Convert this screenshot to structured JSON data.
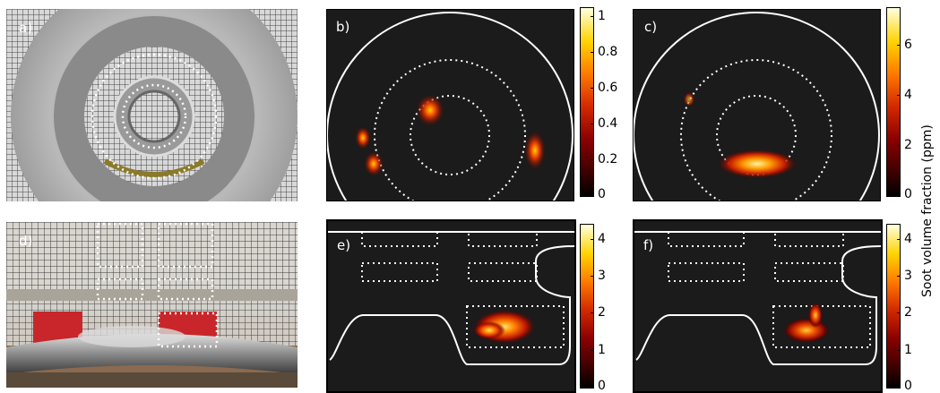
{
  "panels": {
    "a": {
      "label": "a)"
    },
    "b": {
      "label": "b)"
    },
    "c": {
      "label": "c)"
    },
    "d": {
      "label": "d)"
    },
    "e": {
      "label": "e)"
    },
    "f": {
      "label": "f)"
    }
  },
  "colorbars": {
    "b": {
      "ticks": [
        "1",
        "0.8",
        "0.6",
        "0.4",
        "0.2",
        "0"
      ],
      "values": [
        1,
        0.8,
        0.6,
        0.4,
        0.2,
        0
      ],
      "max": 1.05
    },
    "c": {
      "ticks": [
        "6",
        "4",
        "2",
        "0"
      ],
      "values": [
        6,
        4,
        2,
        0
      ],
      "max": 7.5
    },
    "e": {
      "ticks": [
        "4",
        "3",
        "2",
        "1",
        "0"
      ],
      "values": [
        4,
        3,
        2,
        1,
        0
      ],
      "max": 4.4
    },
    "f": {
      "ticks": [
        "4",
        "3",
        "2",
        "1",
        "0"
      ],
      "values": [
        4,
        3,
        2,
        1,
        0
      ],
      "max": 4.4
    }
  },
  "colorbar_label": "Soot volume fraction (ppm)",
  "colors": {
    "background": "#1b1b1b",
    "outline": "#ffffff",
    "colormap": [
      "#000000",
      "#8a0000",
      "#ff7a00",
      "#ffd300",
      "#ffffe0"
    ]
  }
}
